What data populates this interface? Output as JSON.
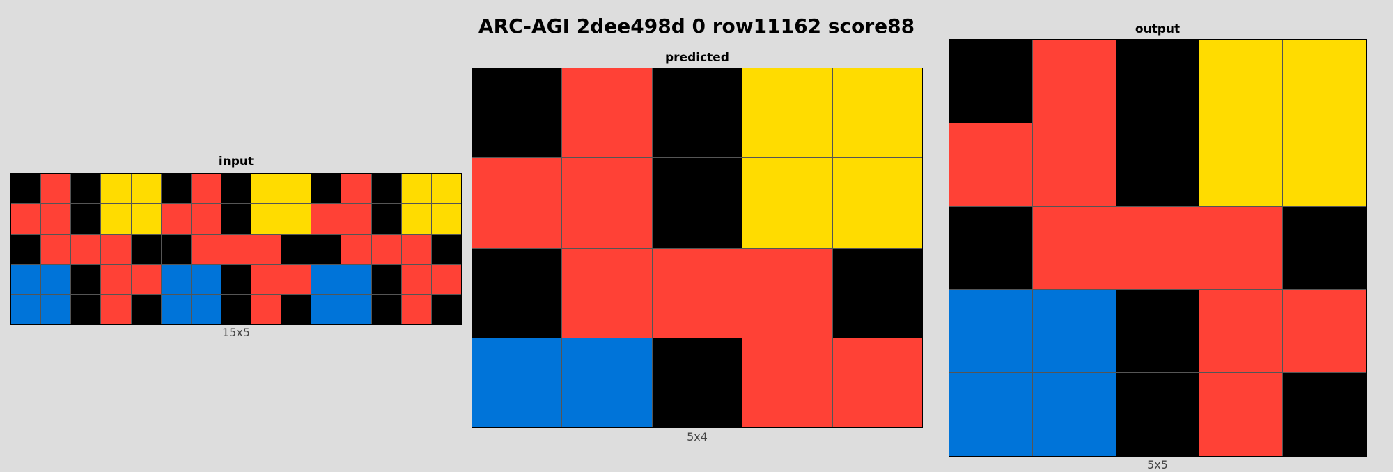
{
  "title": "ARC-AGI 2dee498d 0 row11162 score88",
  "palette": {
    "0": "#000000",
    "1": "#0074d9",
    "2": "#ff4136",
    "4": "#ffdc00"
  },
  "panels": [
    {
      "name": "input",
      "label": "input",
      "size_label": "15x5",
      "grid": [
        [
          0,
          2,
          0,
          4,
          4,
          0,
          2,
          0,
          4,
          4,
          0,
          2,
          0,
          4,
          4
        ],
        [
          2,
          2,
          0,
          4,
          4,
          2,
          2,
          0,
          4,
          4,
          2,
          2,
          0,
          4,
          4
        ],
        [
          0,
          2,
          2,
          2,
          0,
          0,
          2,
          2,
          2,
          0,
          0,
          2,
          2,
          2,
          0
        ],
        [
          1,
          1,
          0,
          2,
          2,
          1,
          1,
          0,
          2,
          2,
          1,
          1,
          0,
          2,
          2
        ],
        [
          1,
          1,
          0,
          2,
          0,
          1,
          1,
          0,
          2,
          0,
          1,
          1,
          0,
          2,
          0
        ]
      ]
    },
    {
      "name": "predicted",
      "label": "predicted",
      "size_label": "5x4",
      "grid": [
        [
          0,
          2,
          0,
          4,
          4
        ],
        [
          2,
          2,
          0,
          4,
          4
        ],
        [
          0,
          2,
          2,
          2,
          0
        ],
        [
          1,
          1,
          0,
          2,
          2
        ]
      ]
    },
    {
      "name": "output",
      "label": "output",
      "size_label": "5x5",
      "grid": [
        [
          0,
          2,
          0,
          4,
          4
        ],
        [
          2,
          2,
          0,
          4,
          4
        ],
        [
          0,
          2,
          2,
          2,
          0
        ],
        [
          1,
          1,
          0,
          2,
          2
        ],
        [
          1,
          1,
          0,
          2,
          0
        ]
      ]
    }
  ]
}
